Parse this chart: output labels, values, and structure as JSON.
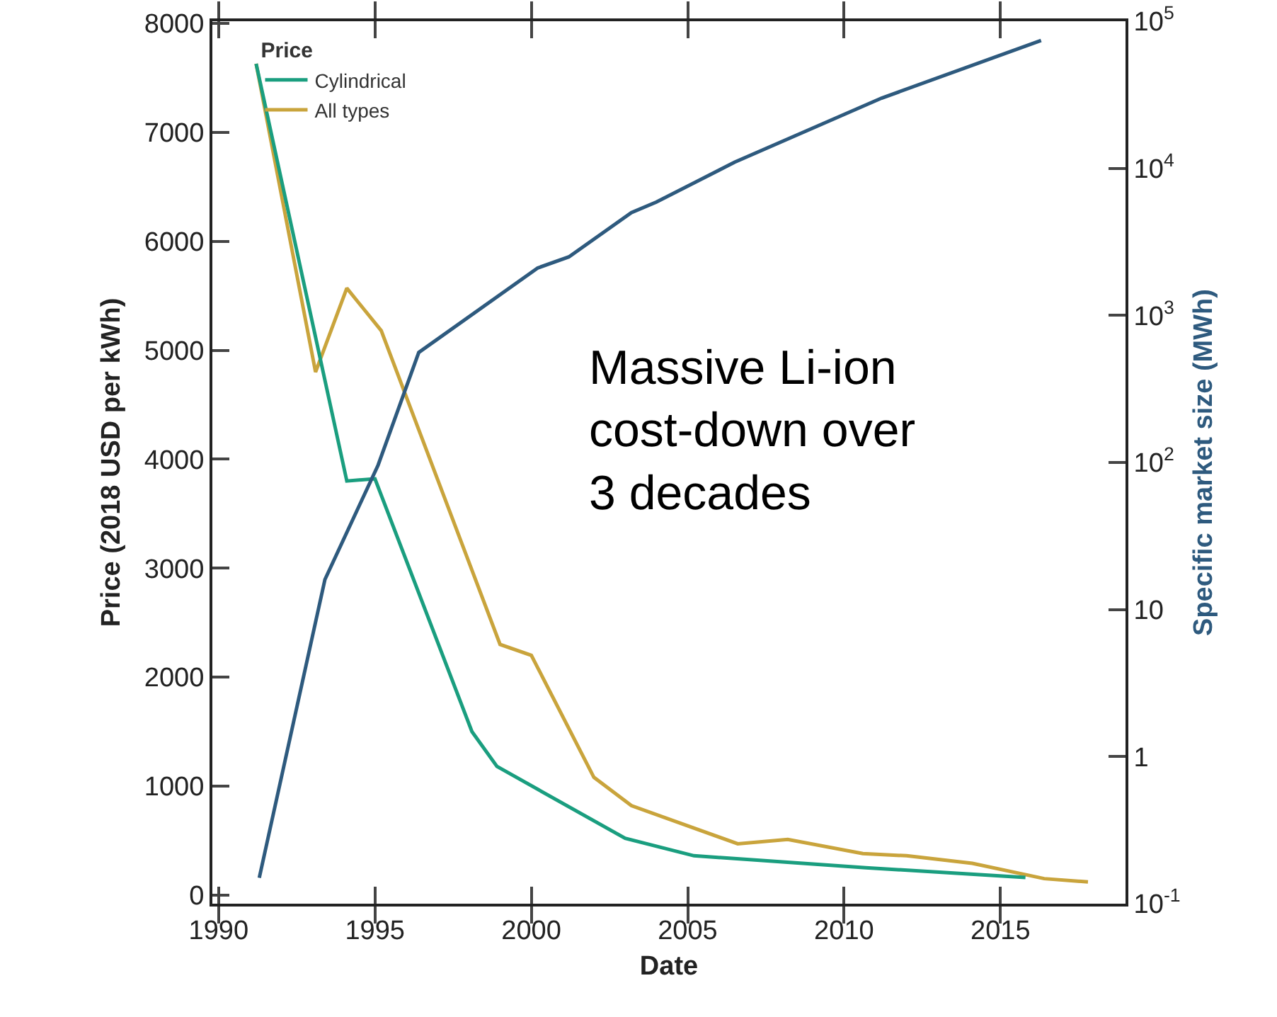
{
  "chart_data": {
    "type": "line",
    "xlabel": "Date",
    "ylabel": "Price (2018 USD per kWh)",
    "y2label": "Specific market size (MWh)",
    "legend_title": "Price",
    "annotations": [
      "Massive Li-ion\ncost-down over\n3 decades"
    ],
    "xlim": [
      1989.8,
      2019
    ],
    "xticks": [
      1990,
      1995,
      2000,
      2005,
      2010,
      2015
    ],
    "ylim": [
      -80,
      8020
    ],
    "yticks": [
      0,
      1000,
      2000,
      3000,
      4000,
      5000,
      6000,
      7000,
      8000
    ],
    "y2lim": [
      0.1,
      100000
    ],
    "y2ticks": [
      {
        "value": 0.1,
        "label": "10$^{-1}$"
      },
      1,
      10,
      {
        "value": 100,
        "label": "10$^{2}$"
      },
      {
        "value": 1000,
        "label": "10$^{3}$"
      },
      {
        "value": 10000,
        "label": "10$^{4}$"
      },
      {
        "value": 100000,
        "label": "10$^{5}$"
      }
    ],
    "log": "y2",
    "grid": false,
    "legend": "top left",
    "marker": "none",
    "line_style": "solid",
    "series": [
      {
        "name": "Cylindrical",
        "color": "#1a9e7f",
        "x": [
          1991.2,
          1994.1,
          1995.0,
          1998.1,
          1998.9,
          2003.0,
          2005.2,
          2010.7,
          2015.8
        ],
        "values": [
          7630,
          3800,
          3820,
          1500,
          1180,
          520,
          360,
          250,
          160
        ]
      },
      {
        "name": "All types",
        "color": "#c9a43c",
        "x": [
          1991.2,
          1993.1,
          1994.1,
          1995.2,
          1999.0,
          2000.0,
          2002.0,
          2003.2,
          2006.6,
          2008.2,
          2010.6,
          2012.0,
          2014.1,
          2016.4,
          2017.8
        ],
        "values": [
          7630,
          4800,
          5570,
          5180,
          2300,
          2200,
          1080,
          820,
          470,
          510,
          380,
          360,
          290,
          150,
          120
        ]
      },
      {
        "axis": "y2",
        "color": "#2e5a7e",
        "x": [
          1991.3,
          1993.4,
          1995.1,
          1996.4,
          2000.2,
          2001.2,
          2003.2,
          2004.0,
          2006.5,
          2011.2,
          2016.3
        ],
        "values": [
          0.15,
          16,
          96,
          560,
          2100,
          2500,
          5000,
          5900,
          11000,
          30000,
          74000
        ]
      }
    ]
  }
}
